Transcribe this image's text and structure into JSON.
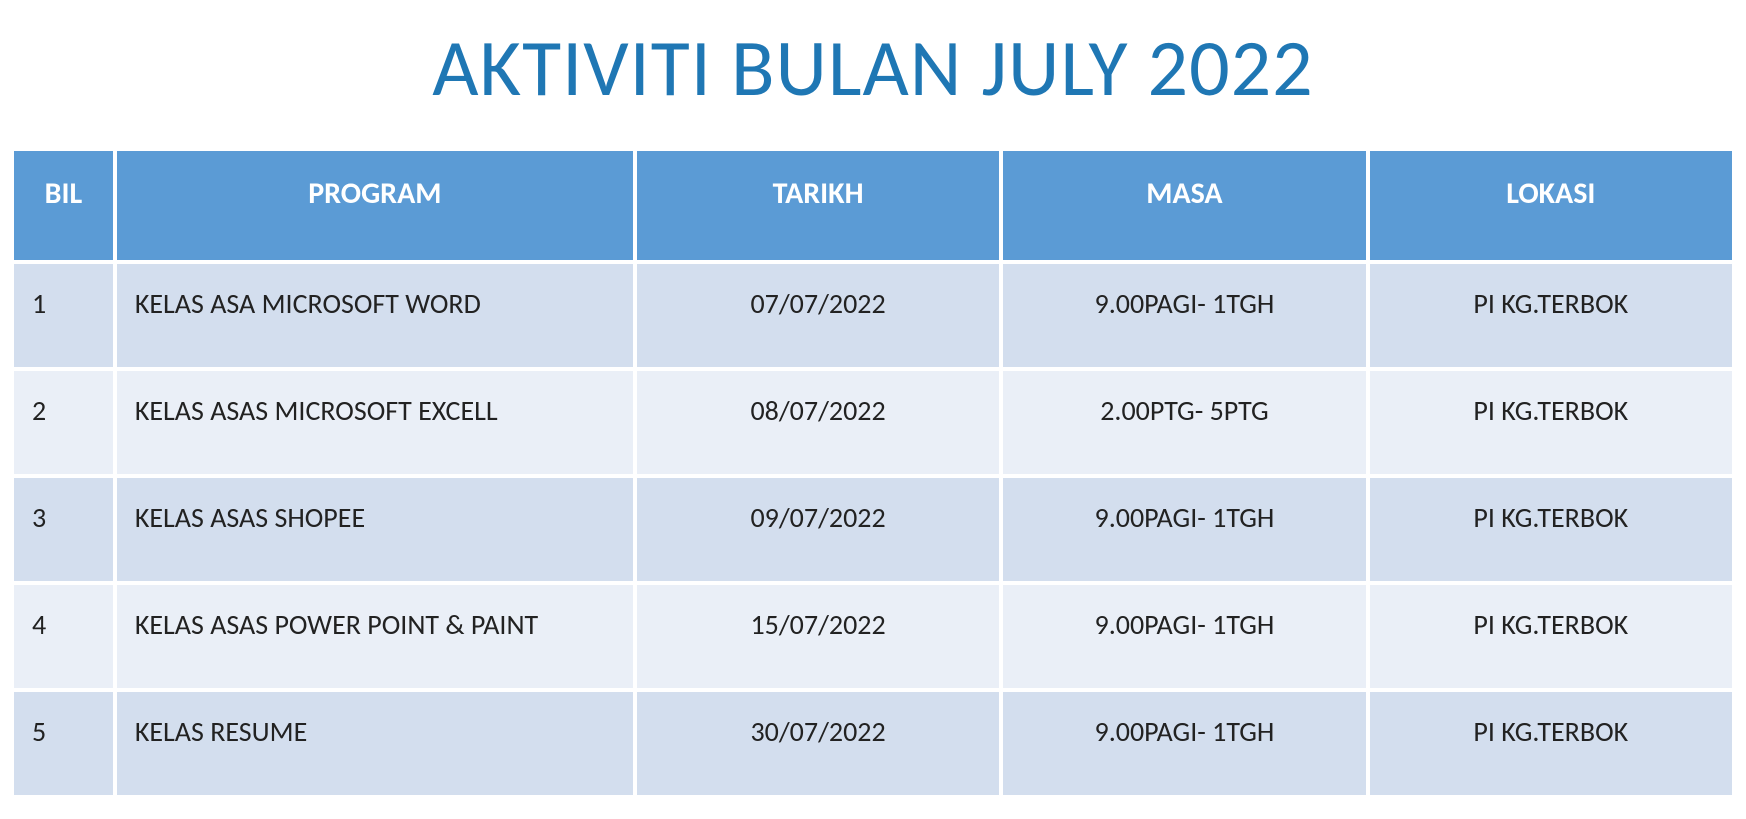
{
  "title": "AKTIVITI BULAN JULY 2022",
  "table": {
    "type": "table",
    "header_bg": "#5b9bd5",
    "header_fg": "#ffffff",
    "row_odd_bg": "#d3deee",
    "row_even_bg": "#eaeff7",
    "title_color": "#1f77b4",
    "title_fontsize": 80,
    "header_fontsize": 30,
    "cell_fontsize": 28,
    "columns": [
      {
        "key": "bil",
        "label": "BIL",
        "align": "left"
      },
      {
        "key": "program",
        "label": "PROGRAM",
        "align": "left"
      },
      {
        "key": "tarikh",
        "label": "TARIKH",
        "align": "center"
      },
      {
        "key": "masa",
        "label": "MASA",
        "align": "center"
      },
      {
        "key": "lokasi",
        "label": "LOKASI",
        "align": "center"
      }
    ],
    "rows": [
      {
        "bil": "1",
        "program": "KELAS ASA MICROSOFT WORD",
        "tarikh": "07/07/2022",
        "masa": "9.00PAGI- 1TGH",
        "lokasi": "PI KG.TERBOK"
      },
      {
        "bil": "2",
        "program": "KELAS ASAS MICROSOFT EXCELL",
        "tarikh": "08/07/2022",
        "masa": "2.00PTG- 5PTG",
        "lokasi": "PI KG.TERBOK"
      },
      {
        "bil": "3",
        "program": "KELAS ASAS SHOPEE",
        "tarikh": "09/07/2022",
        "masa": "9.00PAGI- 1TGH",
        "lokasi": "PI KG.TERBOK"
      },
      {
        "bil": "4",
        "program": "KELAS ASAS POWER POINT & PAINT",
        "tarikh": "15/07/2022",
        "masa": "9.00PAGI- 1TGH",
        "lokasi": "PI KG.TERBOK"
      },
      {
        "bil": "5",
        "program": "KELAS RESUME",
        "tarikh": "30/07/2022",
        "masa": "9.00PAGI- 1TGH",
        "lokasi": "PI KG.TERBOK"
      }
    ]
  }
}
